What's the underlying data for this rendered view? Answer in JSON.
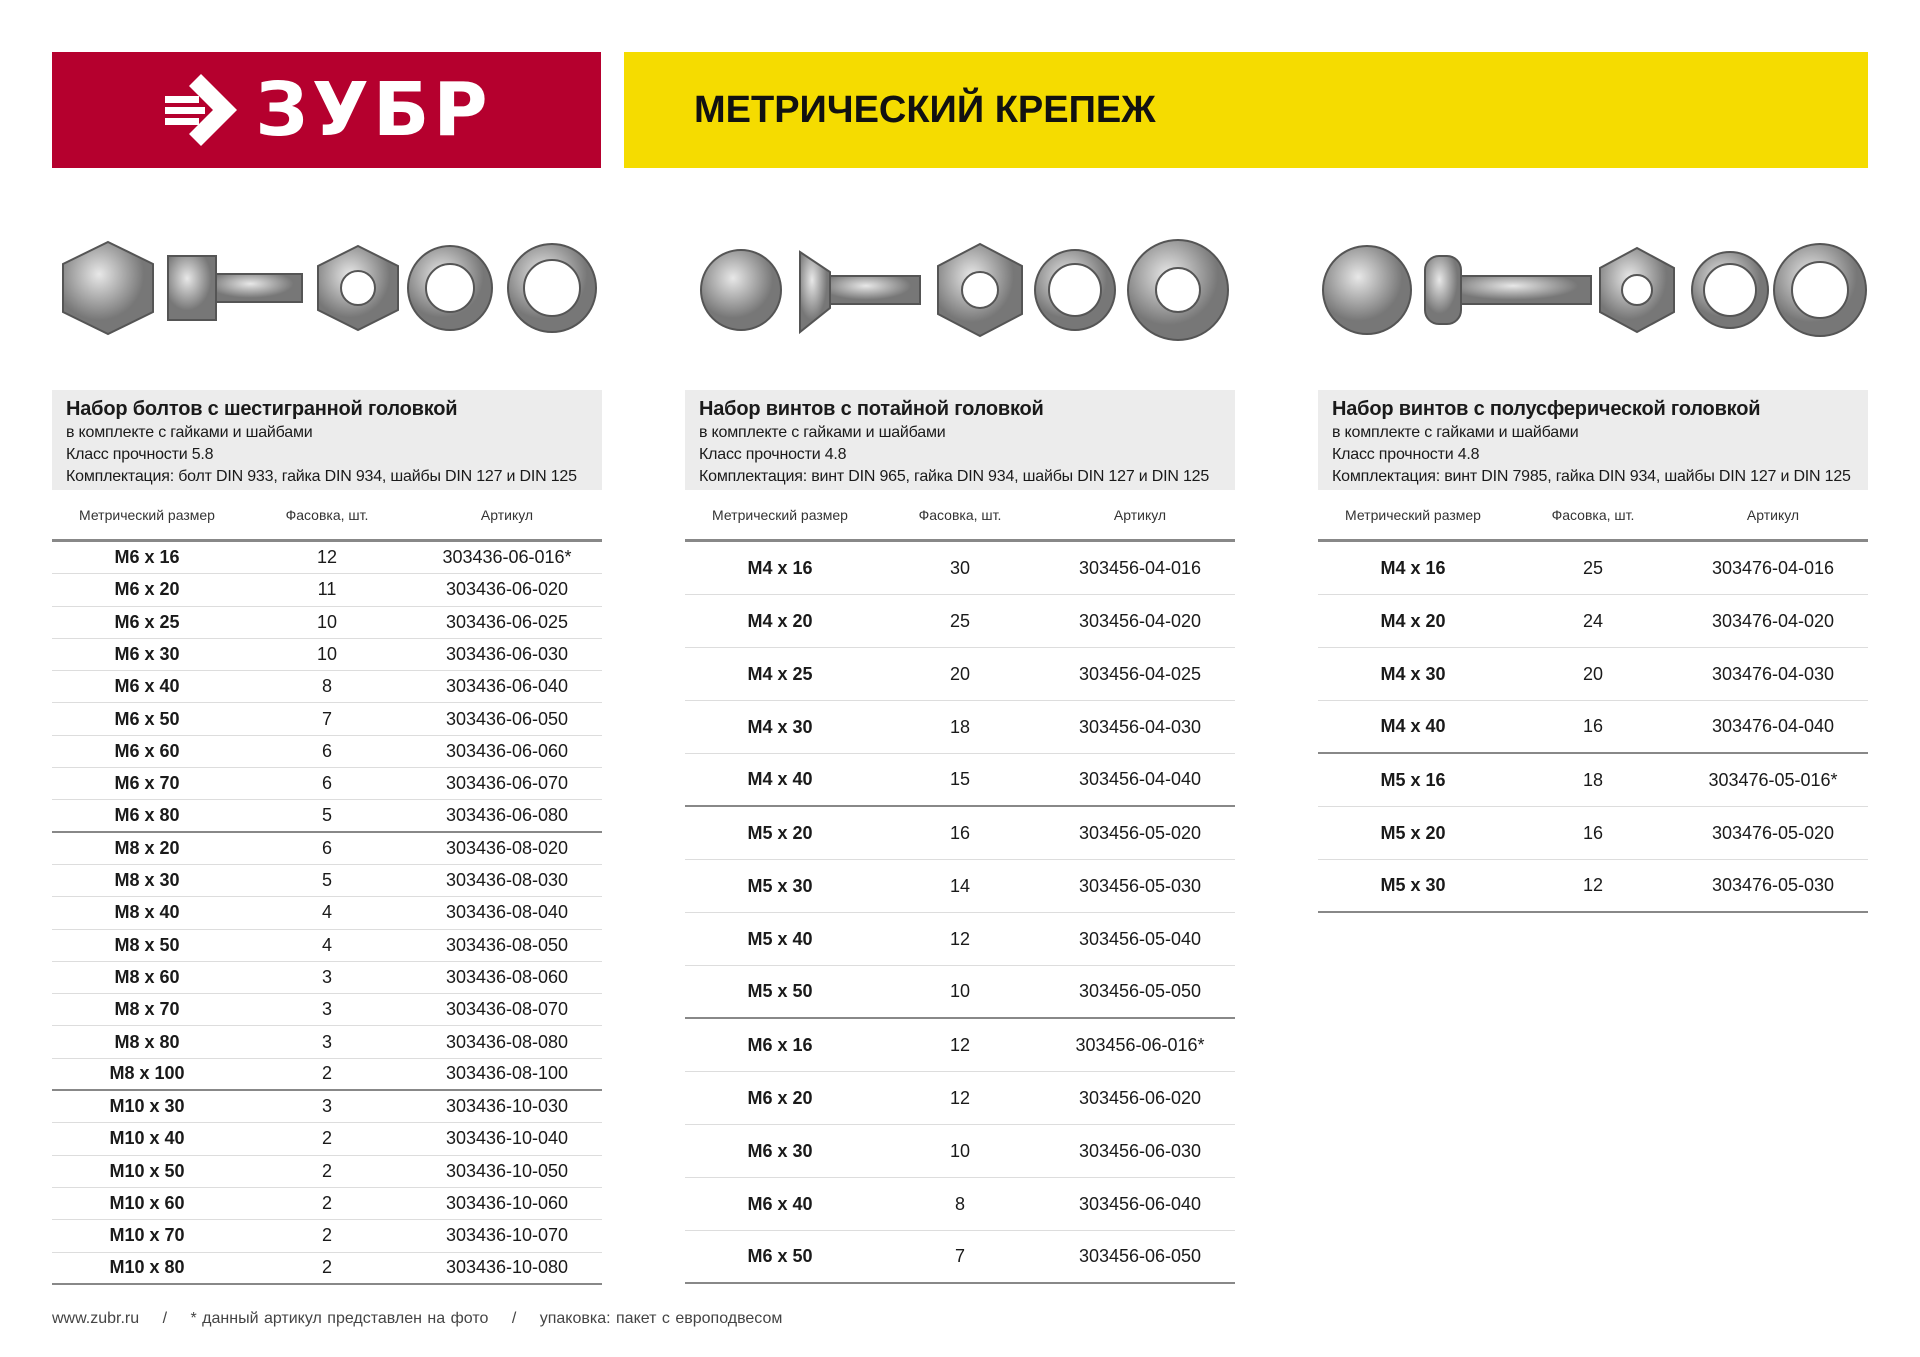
{
  "brand": {
    "logo_text": "ЗУБР",
    "colors": {
      "red": "#b5002e",
      "yellow": "#f5dc00"
    }
  },
  "header": {
    "title": "МЕТРИЧЕСКИЙ КРЕПЕЖ"
  },
  "columns_headers": {
    "size": "Метрический размер",
    "pack": "Фасовка, шт.",
    "article": "Артикул"
  },
  "sets": [
    {
      "title": "Набор болтов с шестигранной головкой",
      "sub": "в комплекте с гайками и шайбами",
      "class": "Класс прочности 5.8",
      "kit": "Комплектация: болт DIN 933, гайка DIN 934, шайбы DIN 127 и DIN 125",
      "rows": [
        [
          "M6 x 16",
          "12",
          "303436-06-016*"
        ],
        [
          "M6 x 20",
          "11",
          "303436-06-020"
        ],
        [
          "M6 x 25",
          "10",
          "303436-06-025"
        ],
        [
          "M6 x 30",
          "10",
          "303436-06-030"
        ],
        [
          "M6 x 40",
          "8",
          "303436-06-040"
        ],
        [
          "M6 x 50",
          "7",
          "303436-06-050"
        ],
        [
          "M6 x 60",
          "6",
          "303436-06-060"
        ],
        [
          "M6 x 70",
          "6",
          "303436-06-070"
        ],
        [
          "M6 x 80",
          "5",
          "303436-06-080"
        ],
        [
          "M8 x 20",
          "6",
          "303436-08-020"
        ],
        [
          "M8 x 30",
          "5",
          "303436-08-030"
        ],
        [
          "M8 x 40",
          "4",
          "303436-08-040"
        ],
        [
          "M8 x 50",
          "4",
          "303436-08-050"
        ],
        [
          "M8 x 60",
          "3",
          "303436-08-060"
        ],
        [
          "M8 x 70",
          "3",
          "303436-08-070"
        ],
        [
          "M8 x 80",
          "3",
          "303436-08-080"
        ],
        [
          "M8 x 100",
          "2",
          "303436-08-100"
        ],
        [
          "M10 x 30",
          "3",
          "303436-10-030"
        ],
        [
          "M10 x 40",
          "2",
          "303436-10-040"
        ],
        [
          "M10 x 50",
          "2",
          "303436-10-050"
        ],
        [
          "M10 x 60",
          "2",
          "303436-10-060"
        ],
        [
          "M10 x 70",
          "2",
          "303436-10-070"
        ],
        [
          "M10 x 80",
          "2",
          "303436-10-080"
        ]
      ],
      "group_ends": [
        8,
        16
      ]
    },
    {
      "title": "Набор винтов с потайной головкой",
      "sub": "в комплекте с гайками и шайбами",
      "class": "Класс прочности 4.8",
      "kit": "Комплектация: винт DIN 965, гайка DIN 934, шайбы DIN 127 и DIN 125",
      "rows": [
        [
          "M4 x 16",
          "30",
          "303456-04-016"
        ],
        [
          "M4 x 20",
          "25",
          "303456-04-020"
        ],
        [
          "M4 x 25",
          "20",
          "303456-04-025"
        ],
        [
          "M4 x 30",
          "18",
          "303456-04-030"
        ],
        [
          "M4 x 40",
          "15",
          "303456-04-040"
        ],
        [
          "M5 x 20",
          "16",
          "303456-05-020"
        ],
        [
          "M5 x 30",
          "14",
          "303456-05-030"
        ],
        [
          "M5 x 40",
          "12",
          "303456-05-040"
        ],
        [
          "M5 x 50",
          "10",
          "303456-05-050"
        ],
        [
          "M6 x 16",
          "12",
          "303456-06-016*"
        ],
        [
          "M6 x 20",
          "12",
          "303456-06-020"
        ],
        [
          "M6 x 30",
          "10",
          "303456-06-030"
        ],
        [
          "M6 x 40",
          "8",
          "303456-06-040"
        ],
        [
          "M6 x 50",
          "7",
          "303456-06-050"
        ]
      ],
      "group_ends": [
        4,
        8
      ]
    },
    {
      "title": "Набор винтов с полусферической головкой",
      "sub": "в комплекте с гайками и шайбами",
      "class": "Класс прочности 4.8",
      "kit": "Комплектация: винт DIN 7985, гайка DIN 934, шайбы DIN 127 и DIN 125",
      "rows": [
        [
          "M4 x 16",
          "25",
          "303476-04-016"
        ],
        [
          "M4 x 20",
          "24",
          "303476-04-020"
        ],
        [
          "M4 x 30",
          "20",
          "303476-04-030"
        ],
        [
          "M4 x 40",
          "16",
          "303476-04-040"
        ],
        [
          "M5 x 16",
          "18",
          "303476-05-016*"
        ],
        [
          "M5 x 20",
          "16",
          "303476-05-020"
        ],
        [
          "M5 x 30",
          "12",
          "303476-05-030"
        ]
      ],
      "group_ends": [
        3
      ]
    }
  ],
  "footer": {
    "site": "www.zubr.ru",
    "sep": "/",
    "note": "* данный артикул представлен на фото",
    "pack": "упаковка: пакет с европодвесом"
  }
}
